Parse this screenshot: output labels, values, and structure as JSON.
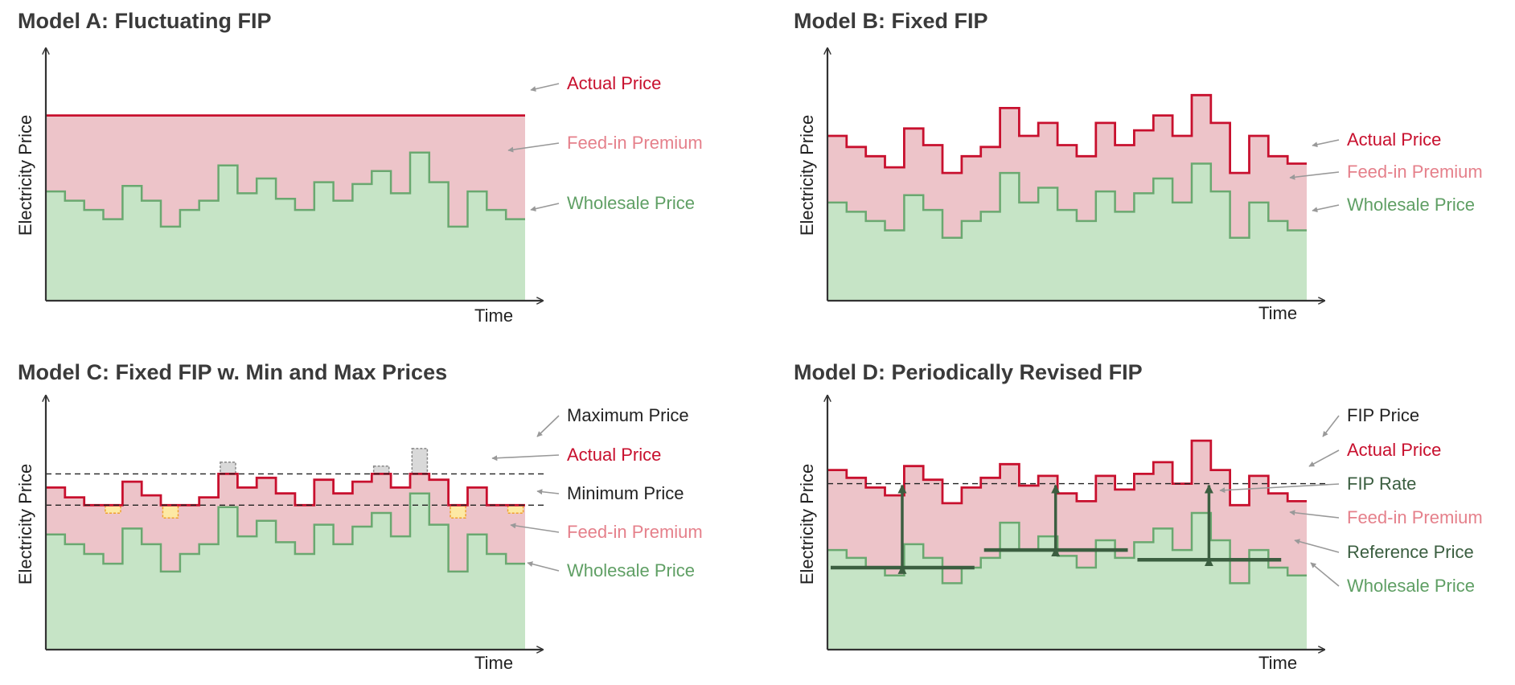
{
  "colors": {
    "actual": "#c8102e",
    "premium_fill": "#edc4c9",
    "premium_text": "#e5808b",
    "wholesale_line": "#6aa870",
    "wholesale_fill": "#c6e4c6",
    "wholesale_text": "#5f9f64",
    "reference": "#3b5e40",
    "dark_text": "#222222",
    "axis": "#333333",
    "leader": "#999999",
    "cap_gray_fill": "#d9d9d9",
    "floor_fill": "#fde9a4",
    "floor_border": "#f0a030"
  },
  "chart_data": [
    {
      "id": "A",
      "type": "area",
      "title": "Model A: Fluctuating FIP",
      "xlabel": "Time",
      "ylabel": "Electricity Price",
      "step": true,
      "ylim": [
        0,
        10
      ],
      "wholesale": [
        5.9,
        5.4,
        4.9,
        4.4,
        6.2,
        5.4,
        4.0,
        4.9,
        5.4,
        7.3,
        5.8,
        6.6,
        5.5,
        4.9,
        6.4,
        5.4,
        6.3,
        7.0,
        5.8,
        8.0,
        6.4,
        4.0,
        5.9,
        4.9,
        4.4
      ],
      "actual": [
        10.0,
        10.0,
        10.0,
        10.0,
        10.0,
        10.0,
        10.0,
        10.0,
        10.0,
        10.0,
        10.0,
        10.0,
        10.0,
        10.0,
        10.0,
        10.0,
        10.0,
        10.0,
        10.0,
        10.0,
        10.0,
        10.0,
        10.0,
        10.0,
        10.0
      ],
      "legend": [
        {
          "label": "Actual Price",
          "color_key": "actual"
        },
        {
          "label": "Feed-in Premium",
          "color_key": "premium_text"
        },
        {
          "label": "Wholesale Price",
          "color_key": "wholesale_text"
        }
      ]
    },
    {
      "id": "B",
      "type": "area",
      "title": "Model B: Fixed FIP",
      "xlabel": "Time",
      "ylabel": "Electricity Price",
      "step": true,
      "ylim": [
        0,
        10
      ],
      "wholesale": [
        5.3,
        4.8,
        4.3,
        3.8,
        5.7,
        4.9,
        3.4,
        4.3,
        4.8,
        6.9,
        5.3,
        6.1,
        4.9,
        4.3,
        5.9,
        4.8,
        5.8,
        6.6,
        5.3,
        7.4,
        5.9,
        3.4,
        5.3,
        4.3,
        3.8
      ],
      "actual": [
        8.9,
        8.3,
        7.8,
        7.2,
        9.3,
        8.4,
        6.9,
        7.8,
        8.3,
        10.4,
        8.9,
        9.6,
        8.4,
        7.8,
        9.6,
        8.4,
        9.2,
        10.0,
        8.9,
        11.1,
        9.6,
        6.9,
        8.9,
        7.8,
        7.4
      ],
      "legend": [
        {
          "label": "Actual Price",
          "color_key": "actual"
        },
        {
          "label": "Feed-in Premium",
          "color_key": "premium_text"
        },
        {
          "label": "Wholesale Price",
          "color_key": "wholesale_text"
        }
      ]
    },
    {
      "id": "C",
      "type": "area",
      "title": "Model C: Fixed FIP w. Min and Max Prices",
      "xlabel": "Time",
      "ylabel": "Electricity Price",
      "step": true,
      "ylim": [
        0,
        10
      ],
      "minimum_price": 7.4,
      "maximum_price": 9.0,
      "wholesale": [
        5.9,
        5.4,
        4.9,
        4.4,
        6.2,
        5.4,
        4.0,
        4.9,
        5.4,
        7.3,
        5.8,
        6.6,
        5.5,
        4.9,
        6.4,
        5.4,
        6.3,
        7.0,
        5.8,
        8.0,
        6.4,
        4.0,
        5.9,
        4.9,
        4.4
      ],
      "actual": [
        8.3,
        7.8,
        7.4,
        7.4,
        8.6,
        7.9,
        7.4,
        7.4,
        7.8,
        9.0,
        8.3,
        8.8,
        8.0,
        7.4,
        8.7,
        8.0,
        8.6,
        9.0,
        8.3,
        9.0,
        8.7,
        7.4,
        8.3,
        7.4,
        7.4
      ],
      "capped_segments": [
        9,
        17,
        19
      ],
      "floored_segments": [
        3,
        6,
        21,
        24
      ],
      "legend": [
        {
          "label": "Maximum Price",
          "color_key": "dark_text"
        },
        {
          "label": "Actual Price",
          "color_key": "actual"
        },
        {
          "label": "Minimum Price",
          "color_key": "dark_text"
        },
        {
          "label": "Feed-in Premium",
          "color_key": "premium_text"
        },
        {
          "label": "Wholesale Price",
          "color_key": "wholesale_text"
        }
      ]
    },
    {
      "id": "D",
      "type": "area",
      "title": "Model D: Periodically Revised FIP",
      "xlabel": "Time",
      "ylabel": "Electricity Price",
      "step": true,
      "ylim": [
        0,
        10
      ],
      "fip_price": 8.5,
      "wholesale": [
        5.1,
        4.7,
        4.2,
        3.8,
        5.4,
        4.7,
        3.4,
        4.2,
        4.7,
        6.5,
        5.1,
        5.8,
        4.8,
        4.2,
        5.6,
        4.7,
        5.5,
        6.2,
        5.1,
        7.0,
        5.6,
        3.4,
        5.1,
        4.2,
        3.8
      ],
      "actual": [
        9.2,
        8.8,
        8.3,
        7.9,
        9.4,
        8.7,
        7.5,
        8.3,
        8.8,
        9.5,
        8.4,
        8.9,
        8.0,
        7.6,
        8.9,
        8.2,
        9.0,
        9.6,
        8.5,
        10.7,
        9.2,
        7.4,
        8.9,
        8.0,
        7.6
      ],
      "reference_periods": [
        {
          "start": 0,
          "end": 7.5,
          "value": 4.2,
          "arrow_at": 3.9
        },
        {
          "start": 8,
          "end": 15.5,
          "value": 5.1,
          "arrow_at": 11.9
        },
        {
          "start": 16,
          "end": 23.5,
          "value": 4.6,
          "arrow_at": 19.9
        }
      ],
      "legend": [
        {
          "label": "FIP Price",
          "color_key": "dark_text"
        },
        {
          "label": "Actual Price",
          "color_key": "actual"
        },
        {
          "label": "FIP Rate",
          "color_key": "reference"
        },
        {
          "label": "Feed-in Premium",
          "color_key": "premium_text"
        },
        {
          "label": "Reference Price",
          "color_key": "reference"
        },
        {
          "label": "Wholesale Price",
          "color_key": "wholesale_text"
        }
      ]
    }
  ]
}
